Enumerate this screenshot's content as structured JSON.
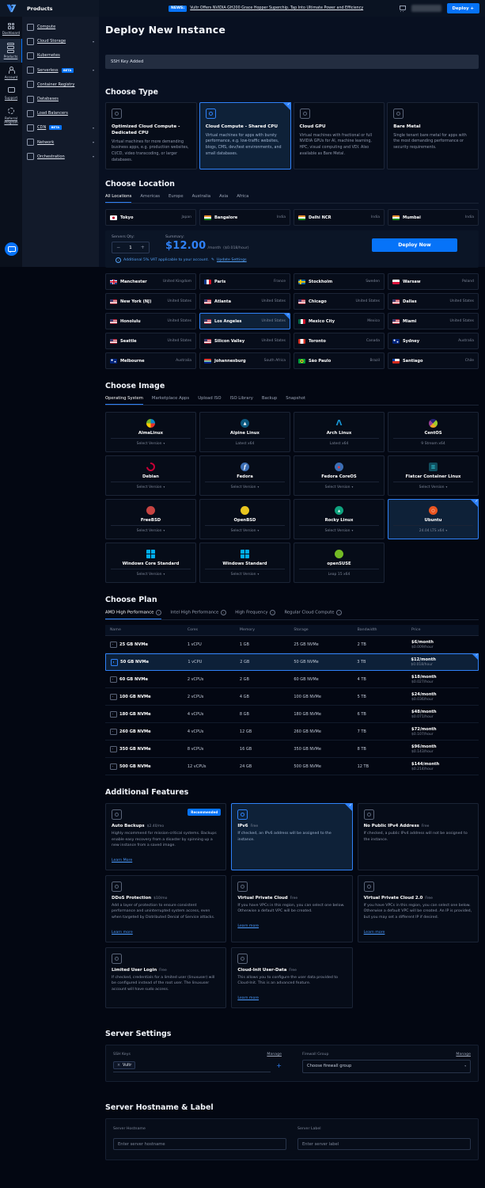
{
  "header": {
    "products_label": "Products",
    "news_badge": "NEWS:",
    "news_text": "Vultr Offers NVIDIA GH200 Grace Hopper Superchip. Tap Into Ultimate Power and Efficiency",
    "deploy_button_label": "Deploy +"
  },
  "rail": {
    "items": [
      {
        "label": "Dashboard",
        "icon": "dashboard-grid-icon",
        "active": false
      },
      {
        "label": "Products",
        "icon": "products-stack-icon",
        "active": true
      },
      {
        "label": "Account",
        "icon": "user-icon",
        "active": false
      },
      {
        "label": "Support",
        "icon": "chat-icon",
        "active": false
      },
      {
        "label": "Referral Program",
        "icon": "referral-icon",
        "active": false
      }
    ]
  },
  "sidebar": {
    "items": [
      {
        "label": "Compute",
        "badge": "",
        "chevron": false
      },
      {
        "label": "Cloud Storage",
        "badge": "",
        "chevron": true
      },
      {
        "label": "Kubernetes",
        "badge": "",
        "chevron": false
      },
      {
        "label": "Serverless",
        "badge": "BETA",
        "chevron": true
      },
      {
        "label": "Container Registry",
        "badge": "",
        "chevron": false
      },
      {
        "label": "Databases",
        "badge": "",
        "chevron": false
      },
      {
        "label": "Load Balancers",
        "badge": "",
        "chevron": false
      },
      {
        "label": "CDN",
        "badge": "BETA",
        "chevron": true
      },
      {
        "label": "Network",
        "badge": "",
        "chevron": true
      },
      {
        "label": "Orchestration",
        "badge": "",
        "chevron": true
      }
    ]
  },
  "page": {
    "title": "Deploy New Instance",
    "ssh_notice": "SSH Key Added"
  },
  "choose_type": {
    "heading": "Choose Type",
    "cards": [
      {
        "title": "Optimized Cloud Compute - Dedicated CPU",
        "desc": "Virtual machines for more demanding business apps, e.g. production websites, CI/CD, video transcoding, or larger databases.",
        "selected": false
      },
      {
        "title": "Cloud Compute - Shared CPU",
        "desc": "Virtual machines for apps with bursty performance, e.g. low-traffic websites, blogs, CMS, dev/test environments, and small databases.",
        "selected": true
      },
      {
        "title": "Cloud GPU",
        "desc": "Virtual machines with fractional or full NVIDIA GPUs for AI, machine learning, HPC, visual computing and VDI. Also available as Bare Metal.",
        "selected": false
      },
      {
        "title": "Bare Metal",
        "desc": "Single tenant bare metal for apps with the most demanding performance or security requirements.",
        "selected": false
      }
    ]
  },
  "choose_location": {
    "heading": "Choose Location",
    "tabs": [
      {
        "label": "All Locations",
        "active": true
      },
      {
        "label": "Americas",
        "active": false
      },
      {
        "label": "Europe",
        "active": false
      },
      {
        "label": "Australia",
        "active": false
      },
      {
        "label": "Asia",
        "active": false
      },
      {
        "label": "Africa",
        "active": false
      }
    ],
    "featured": [
      {
        "city": "Tokyo",
        "country": "Japan",
        "flag": "jp",
        "selected": false
      },
      {
        "city": "Bangalore",
        "country": "India",
        "flag": "in",
        "selected": false
      },
      {
        "city": "Delhi NCR",
        "country": "India",
        "flag": "in",
        "selected": false
      },
      {
        "city": "Mumbai",
        "country": "India",
        "flag": "in",
        "selected": false
      }
    ],
    "grid": [
      {
        "city": "Manchester",
        "country": "United Kingdom",
        "flag": "uk",
        "selected": false
      },
      {
        "city": "Paris",
        "country": "France",
        "flag": "fr",
        "selected": false
      },
      {
        "city": "Stockholm",
        "country": "Sweden",
        "flag": "se",
        "selected": false
      },
      {
        "city": "Warsaw",
        "country": "Poland",
        "flag": "pl",
        "selected": false
      },
      {
        "city": "New York (NJ)",
        "country": "United States",
        "flag": "us",
        "selected": false
      },
      {
        "city": "Atlanta",
        "country": "United States",
        "flag": "us",
        "selected": false
      },
      {
        "city": "Chicago",
        "country": "United States",
        "flag": "us",
        "selected": false
      },
      {
        "city": "Dallas",
        "country": "United States",
        "flag": "us",
        "selected": false
      },
      {
        "city": "Honolulu",
        "country": "United States",
        "flag": "us",
        "selected": false
      },
      {
        "city": "Los Angeles",
        "country": "United States",
        "flag": "us",
        "selected": true
      },
      {
        "city": "Mexico City",
        "country": "Mexico",
        "flag": "mx",
        "selected": false
      },
      {
        "city": "Miami",
        "country": "United States",
        "flag": "us",
        "selected": false
      },
      {
        "city": "Seattle",
        "country": "United States",
        "flag": "us",
        "selected": false
      },
      {
        "city": "Silicon Valley",
        "country": "United States",
        "flag": "us",
        "selected": false
      },
      {
        "city": "Toronto",
        "country": "Canada",
        "flag": "ca",
        "selected": false
      },
      {
        "city": "Sydney",
        "country": "Australia",
        "flag": "au",
        "selected": false
      },
      {
        "city": "Melbourne",
        "country": "Australia",
        "flag": "au",
        "selected": false
      },
      {
        "city": "Johannesburg",
        "country": "South Africa",
        "flag": "za",
        "selected": false
      },
      {
        "city": "São Paulo",
        "country": "Brazil",
        "flag": "br",
        "selected": false
      },
      {
        "city": "Santiago",
        "country": "Chile",
        "flag": "cl",
        "selected": false
      }
    ]
  },
  "summary_bar": {
    "qty_label": "Servers Qty:",
    "minus": "−",
    "qty": "1",
    "plus": "+",
    "summary_label": "Summary:",
    "price": "$12.00",
    "per": "/month",
    "hourly": "($0.018/hour)",
    "deploy_label": "Deploy Now",
    "vat_note": "Additional 5% VAT applicable to your account.",
    "vat_link": "Update Settings"
  },
  "choose_image": {
    "heading": "Choose Image",
    "tabs": [
      {
        "label": "Operating System",
        "active": true
      },
      {
        "label": "Marketplace Apps",
        "active": false
      },
      {
        "label": "Upload ISO",
        "active": false
      },
      {
        "label": "ISO Library",
        "active": false
      },
      {
        "label": "Backup",
        "active": false
      },
      {
        "label": "Snapshot",
        "active": false
      }
    ],
    "cards": [
      {
        "name": "AlmaLinux",
        "version": "Select Version",
        "dropdown": true,
        "icon": "almalinux-icon",
        "selected": false
      },
      {
        "name": "Alpine Linux",
        "version": "Latest x64",
        "dropdown": false,
        "icon": "alpine-icon",
        "selected": false
      },
      {
        "name": "Arch Linux",
        "version": "Latest x64",
        "dropdown": false,
        "icon": "arch-icon",
        "selected": false
      },
      {
        "name": "CentOS",
        "version": "9 Stream x64",
        "dropdown": false,
        "icon": "centos-icon",
        "selected": false
      },
      {
        "name": "Debian",
        "version": "Select Version",
        "dropdown": true,
        "icon": "debian-icon",
        "selected": false
      },
      {
        "name": "Fedora",
        "version": "Select Version",
        "dropdown": true,
        "icon": "fedora-icon",
        "selected": false
      },
      {
        "name": "Fedora CoreOS",
        "version": "Select Version",
        "dropdown": true,
        "icon": "fedora-coreos-icon",
        "selected": false
      },
      {
        "name": "Flatcar Container Linux",
        "version": "Select Version",
        "dropdown": true,
        "icon": "flatcar-icon",
        "selected": false
      },
      {
        "name": "FreeBSD",
        "version": "Select Version",
        "dropdown": true,
        "icon": "freebsd-icon",
        "selected": false
      },
      {
        "name": "OpenBSD",
        "version": "Select Version",
        "dropdown": true,
        "icon": "openbsd-icon",
        "selected": false
      },
      {
        "name": "Rocky Linux",
        "version": "Select Version",
        "dropdown": true,
        "icon": "rocky-icon",
        "selected": false
      },
      {
        "name": "Ubuntu",
        "version": "24.04 LTS x64",
        "dropdown": true,
        "icon": "ubuntu-icon",
        "selected": true
      },
      {
        "name": "Windows Core Standard",
        "version": "Select Version",
        "dropdown": true,
        "icon": "windows-icon",
        "selected": false
      },
      {
        "name": "Windows Standard",
        "version": "Select Version",
        "dropdown": true,
        "icon": "windows-icon",
        "selected": false
      },
      {
        "name": "openSUSE",
        "version": "Leap 15 x64",
        "dropdown": false,
        "icon": "opensuse-icon",
        "selected": false
      }
    ]
  },
  "choose_plan": {
    "heading": "Choose Plan",
    "tabs": [
      {
        "label": "AMD High Performance",
        "active": true
      },
      {
        "label": "Intel High Performance",
        "active": false
      },
      {
        "label": "High Frequency",
        "active": false
      },
      {
        "label": "Regular Cloud Compute",
        "active": false
      }
    ],
    "table": {
      "headers": [
        "Name",
        "Cores",
        "Memory",
        "Storage",
        "Bandwidth",
        "Price"
      ],
      "rows": [
        {
          "name": "25 GB NVMe",
          "cores": "1 vCPU",
          "memory": "1 GB",
          "storage": "25 GB NVMe",
          "bandwidth": "2 TB",
          "price_month": "$6/month",
          "price_hour": "$0.009/hour",
          "selected": false
        },
        {
          "name": "50 GB NVMe",
          "cores": "1 vCPU",
          "memory": "2 GB",
          "storage": "50 GB NVMe",
          "bandwidth": "3 TB",
          "price_month": "$12/month",
          "price_hour": "$0.018/hour",
          "selected": true
        },
        {
          "name": "60 GB NVMe",
          "cores": "2 vCPUs",
          "memory": "2 GB",
          "storage": "60 GB NVMe",
          "bandwidth": "4 TB",
          "price_month": "$18/month",
          "price_hour": "$0.027/hour",
          "selected": false
        },
        {
          "name": "100 GB NVMe",
          "cores": "2 vCPUs",
          "memory": "4 GB",
          "storage": "100 GB NVMe",
          "bandwidth": "5 TB",
          "price_month": "$24/month",
          "price_hour": "$0.036/hour",
          "selected": false
        },
        {
          "name": "180 GB NVMe",
          "cores": "4 vCPUs",
          "memory": "8 GB",
          "storage": "180 GB NVMe",
          "bandwidth": "6 TB",
          "price_month": "$48/month",
          "price_hour": "$0.071/hour",
          "selected": false
        },
        {
          "name": "260 GB NVMe",
          "cores": "4 vCPUs",
          "memory": "12 GB",
          "storage": "260 GB NVMe",
          "bandwidth": "7 TB",
          "price_month": "$72/month",
          "price_hour": "$0.107/hour",
          "selected": false
        },
        {
          "name": "350 GB NVMe",
          "cores": "8 vCPUs",
          "memory": "16 GB",
          "storage": "350 GB NVMe",
          "bandwidth": "8 TB",
          "price_month": "$96/month",
          "price_hour": "$0.143/hour",
          "selected": false
        },
        {
          "name": "500 GB NVMe",
          "cores": "12 vCPUs",
          "memory": "24 GB",
          "storage": "500 GB NVMe",
          "bandwidth": "12 TB",
          "price_month": "$144/month",
          "price_hour": "$0.214/hour",
          "selected": false
        }
      ]
    }
  },
  "features": {
    "heading": "Additional Features",
    "cards": [
      {
        "title": "Auto Backups",
        "price": "$2.40/mo",
        "badge": "Recommended",
        "desc": "Highly recommend for mission-critical systems. Backups enable easy recovery from a disaster by spinning up a new instance from a saved image.",
        "link": "Learn More",
        "selected": false
      },
      {
        "title": "IPv6",
        "price": "Free",
        "badge": "",
        "desc": "If checked, an IPv6 address will be assigned to the instance.",
        "link": "",
        "selected": true
      },
      {
        "title": "No Public IPv4 Address",
        "price": "Free",
        "badge": "",
        "desc": "If checked, a public IPv4 address will not be assigned to the instance.",
        "link": "",
        "selected": false
      },
      {
        "title": "DDoS Protection",
        "price": "$10/mo",
        "badge": "",
        "desc": "Add a layer of protection to ensure consistent performance and uninterrupted system access, even when targeted by Distributed Denial of Service attacks.",
        "link": "Learn more",
        "selected": false
      },
      {
        "title": "Virtual Private Cloud",
        "price": "Free",
        "badge": "",
        "desc": "If you have VPCs in this region, you can select one below. Otherwise a default VPC will be created.",
        "link": "Learn more",
        "selected": false
      },
      {
        "title": "Virtual Private Cloud 2.0",
        "price": "Free",
        "badge": "",
        "desc": "If you have VPCs in this region, you can select one below. Otherwise a default VPC will be created. An IP is provided, but you may set a different IP if desired.",
        "link": "Learn more",
        "selected": false
      },
      {
        "title": "Limited User Login",
        "price": "Free",
        "badge": "",
        "desc": "If checked, credentials for a limited user (linuxuser) will be configured instead of the root user. The linuxuser account will have sudo access.",
        "link": "",
        "selected": false
      },
      {
        "title": "Cloud-Init User-Data",
        "price": "Free",
        "badge": "",
        "desc": "This allows you to configure the user data provided to Cloud-Init. This is an advanced feature.",
        "link": "Learn more",
        "selected": false
      }
    ]
  },
  "server_settings": {
    "heading": "Server Settings",
    "ssh_label": "SSH Keys",
    "ssh_manage": "Manage",
    "ssh_chip": "Vultr",
    "firewall_label": "Firewall Group",
    "firewall_manage": "Manage",
    "firewall_placeholder": "Choose firewall group"
  },
  "hostname": {
    "heading": "Server Hostname & Label",
    "hostname_label": "Server Hostname",
    "hostname_placeholder": "Enter server hostname",
    "label_label": "Server Label",
    "label_placeholder": "Enter server label"
  },
  "colors": {
    "accent": "#0673F8",
    "selected": "#2F81F7",
    "price": "#2F81F7"
  }
}
